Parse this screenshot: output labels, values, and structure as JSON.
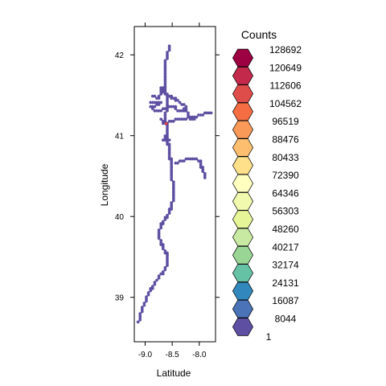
{
  "chart_data": {
    "type": "hexbin",
    "xlabel": "Latitude",
    "ylabel": "Longitude",
    "xlim": [
      -9.2,
      -7.7
    ],
    "ylim": [
      38.45,
      42.35
    ],
    "x_ticks": [
      -9.0,
      -8.5,
      -8.0
    ],
    "x_tick_labels": [
      "-9.0",
      "-8.5",
      "-8.0"
    ],
    "y_ticks": [
      39,
      40,
      41,
      42
    ],
    "y_tick_labels": [
      "39",
      "40",
      "41",
      "42"
    ],
    "legend": {
      "title": "Counts",
      "placement": "right",
      "labels": [
        "128692",
        "120649",
        "112606",
        "104562",
        "96519",
        "88476",
        "80433",
        "72390",
        "64346",
        "56303",
        "48260",
        "40217",
        "32174",
        "24131",
        "16087",
        "8044",
        "1"
      ],
      "colors": [
        "#9E0142",
        "#C2294A",
        "#DF4D4B",
        "#F46D43",
        "#FA9A58",
        "#FDBF6F",
        "#FEE08B",
        "#FFFFBF",
        "#F1F9AE",
        "#E6F598",
        "#C7E9A1",
        "#99D594",
        "#66C2A5",
        "#3288BD",
        "#4A73B8",
        "#5E4FA2"
      ]
    },
    "series": [
      {
        "points": [
          [
            -8.55,
            42.1
          ],
          [
            -8.6,
            42.0
          ],
          [
            -8.62,
            41.9
          ],
          [
            -8.63,
            41.8
          ],
          [
            -8.63,
            41.7
          ],
          [
            -8.62,
            41.6
          ],
          [
            -8.61,
            41.5
          ],
          [
            -8.6,
            41.4
          ],
          [
            -8.61,
            41.3
          ],
          [
            -8.62,
            41.2
          ],
          [
            -8.6,
            41.1
          ],
          [
            -8.58,
            41.0
          ],
          [
            -8.57,
            40.9
          ],
          [
            -8.55,
            40.8
          ],
          [
            -8.53,
            40.7
          ],
          [
            -8.52,
            40.6
          ],
          [
            -8.5,
            40.5
          ],
          [
            -8.49,
            40.4
          ],
          [
            -8.48,
            40.3
          ],
          [
            -8.49,
            40.2
          ],
          [
            -8.52,
            40.1
          ],
          [
            -8.6,
            40.0
          ],
          [
            -8.7,
            39.9
          ],
          [
            -8.75,
            39.8
          ],
          [
            -8.72,
            39.7
          ],
          [
            -8.65,
            39.6
          ],
          [
            -8.58,
            39.5
          ],
          [
            -8.6,
            39.4
          ],
          [
            -8.68,
            39.3
          ],
          [
            -8.8,
            39.2
          ],
          [
            -8.9,
            39.1
          ],
          [
            -8.97,
            39.0
          ],
          [
            -9.03,
            38.9
          ],
          [
            -9.08,
            38.8
          ],
          [
            -9.12,
            38.7
          ],
          [
            -8.9,
            41.4
          ],
          [
            -8.8,
            41.4
          ],
          [
            -8.7,
            41.4
          ],
          [
            -8.9,
            41.35
          ],
          [
            -8.8,
            41.3
          ],
          [
            -8.7,
            41.32
          ],
          [
            -8.55,
            41.35
          ],
          [
            -8.45,
            41.35
          ],
          [
            -8.4,
            41.3
          ],
          [
            -8.3,
            41.3
          ],
          [
            -8.25,
            41.35
          ],
          [
            -8.2,
            41.25
          ],
          [
            -8.1,
            41.22
          ],
          [
            -8.0,
            41.25
          ],
          [
            -7.9,
            41.27
          ],
          [
            -7.8,
            41.28
          ],
          [
            -7.78,
            41.27
          ],
          [
            -8.7,
            41.2
          ],
          [
            -8.65,
            41.15
          ],
          [
            -8.5,
            41.18
          ],
          [
            -8.4,
            41.2
          ],
          [
            -8.3,
            41.2
          ],
          [
            -8.2,
            41.22
          ],
          [
            -8.1,
            41.2
          ],
          [
            -8.85,
            41.5
          ],
          [
            -8.75,
            41.45
          ],
          [
            -8.7,
            41.6
          ],
          [
            -8.65,
            41.55
          ],
          [
            -8.55,
            41.5
          ],
          [
            -8.45,
            41.45
          ],
          [
            -8.35,
            41.4
          ],
          [
            -8.3,
            41.38
          ],
          [
            -8.62,
            41.0
          ],
          [
            -8.65,
            40.95
          ],
          [
            -8.55,
            40.95
          ],
          [
            -8.6,
            40.9
          ],
          [
            -8.45,
            40.65
          ],
          [
            -8.35,
            40.68
          ],
          [
            -8.25,
            40.7
          ],
          [
            -8.15,
            40.7
          ],
          [
            -8.05,
            40.7
          ],
          [
            -7.98,
            40.68
          ],
          [
            -7.95,
            40.6
          ],
          [
            -7.92,
            40.55
          ],
          [
            -7.9,
            40.48
          ]
        ]
      }
    ],
    "markers": [
      [
        -8.61,
        41.15
      ]
    ]
  }
}
